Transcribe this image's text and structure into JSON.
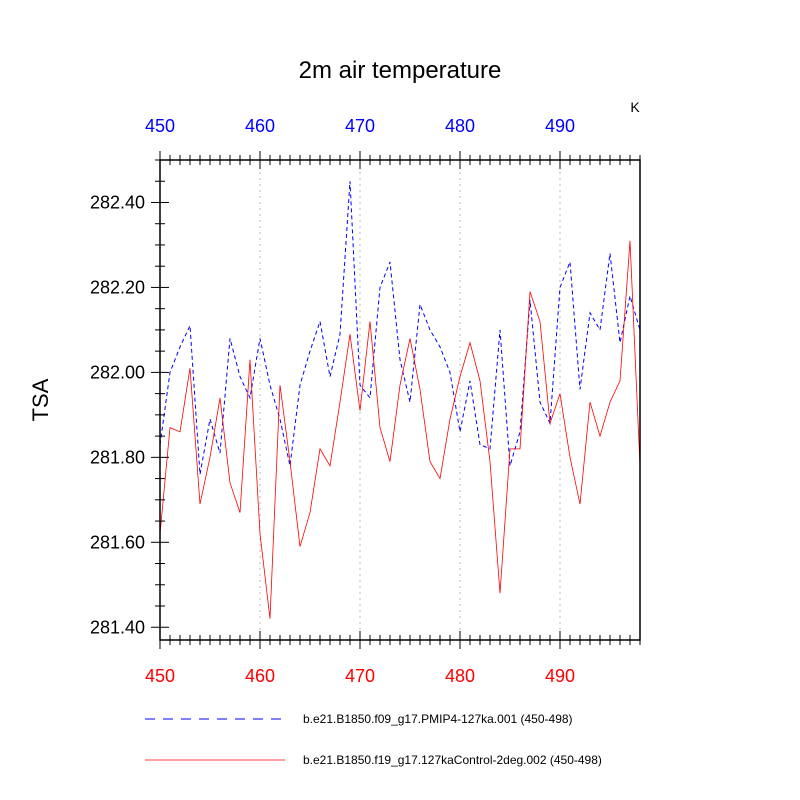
{
  "chart_data": {
    "type": "line",
    "title": "2m air temperature",
    "ylabel": "TSA",
    "units_label": "K",
    "xlim": [
      450,
      498
    ],
    "ylim": [
      281.37,
      282.5
    ],
    "x_ticks": [
      450,
      460,
      470,
      480,
      490
    ],
    "x_tick_labels": [
      "450",
      "460",
      "470",
      "480",
      "490"
    ],
    "y_ticks": [
      281.4,
      281.6,
      281.8,
      282.0,
      282.2,
      282.4
    ],
    "y_tick_labels": [
      "281.40",
      "281.60",
      "281.80",
      "282.00",
      "282.20",
      "282.40"
    ],
    "grid": "vertical dotted at major x ticks",
    "legend_position": "bottom",
    "colors": {
      "top_axis": "#0000ff",
      "bottom_axis": "#ff0000"
    },
    "series": [
      {
        "name": "b.e21.B1850.f09_g17.PMIP4-127ka.001 (450-498)",
        "color": "#0000ff",
        "style": "dashed",
        "x": [
          450,
          451,
          452,
          453,
          454,
          455,
          456,
          457,
          458,
          459,
          460,
          461,
          462,
          463,
          464,
          465,
          466,
          467,
          468,
          469,
          470,
          471,
          472,
          473,
          474,
          475,
          476,
          477,
          478,
          479,
          480,
          481,
          482,
          483,
          484,
          485,
          486,
          487,
          488,
          489,
          490,
          491,
          492,
          493,
          494,
          495,
          496,
          497,
          498
        ],
        "values": [
          281.83,
          282.0,
          282.06,
          282.11,
          281.76,
          281.89,
          281.81,
          282.08,
          281.99,
          281.94,
          282.08,
          281.97,
          281.89,
          281.78,
          281.97,
          282.05,
          282.12,
          281.99,
          282.09,
          282.45,
          281.97,
          281.94,
          282.2,
          282.26,
          282.03,
          281.93,
          282.16,
          282.1,
          282.06,
          282.0,
          281.86,
          281.98,
          281.83,
          281.82,
          282.1,
          281.78,
          281.86,
          282.17,
          281.93,
          281.88,
          282.2,
          282.26,
          281.96,
          282.14,
          282.1,
          282.28,
          282.07,
          282.18,
          282.1
        ]
      },
      {
        "name": "b.e21.B1850.f19_g17.127kaControl-2deg.002 (450-498)",
        "color": "#ff0000",
        "style": "solid",
        "x": [
          450,
          451,
          452,
          453,
          454,
          455,
          456,
          457,
          458,
          459,
          460,
          461,
          462,
          463,
          464,
          465,
          466,
          467,
          468,
          469,
          470,
          471,
          472,
          473,
          474,
          475,
          476,
          477,
          478,
          479,
          480,
          481,
          482,
          483,
          484,
          485,
          486,
          487,
          488,
          489,
          490,
          491,
          492,
          493,
          494,
          495,
          496,
          497,
          498
        ],
        "values": [
          281.62,
          281.87,
          281.86,
          282.01,
          281.69,
          281.8,
          281.94,
          281.74,
          281.67,
          282.03,
          281.62,
          281.42,
          281.97,
          281.79,
          281.59,
          281.67,
          281.82,
          281.78,
          281.93,
          282.09,
          281.91,
          282.12,
          281.87,
          281.79,
          281.97,
          282.08,
          281.96,
          281.79,
          281.75,
          281.89,
          281.99,
          282.07,
          281.98,
          281.79,
          281.48,
          281.82,
          281.82,
          282.19,
          282.12,
          281.88,
          281.95,
          281.8,
          281.69,
          281.93,
          281.85,
          281.93,
          281.98,
          282.31,
          281.78
        ]
      }
    ]
  }
}
